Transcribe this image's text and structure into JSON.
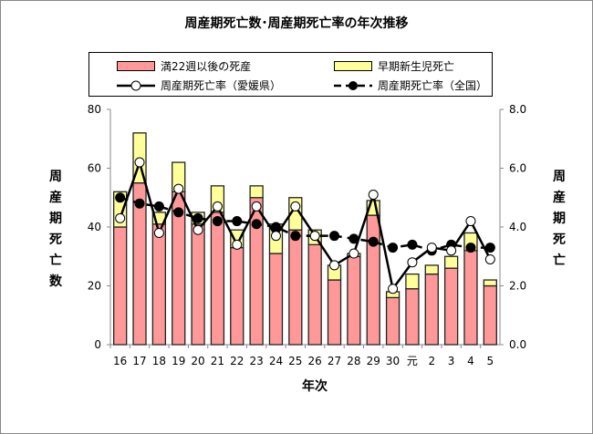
{
  "chart_data": {
    "type": "bar",
    "title": "周産期死亡数･周産期死亡率の年次推移",
    "xlabel": "年次",
    "ylabel_left": [
      "周",
      "産",
      "期",
      "死",
      "亡",
      "数"
    ],
    "ylabel_right": [
      "周",
      "産",
      "期",
      "死",
      "亡"
    ],
    "categories": [
      "16",
      "17",
      "18",
      "19",
      "20",
      "21",
      "22",
      "23",
      "24",
      "25",
      "26",
      "27",
      "28",
      "29",
      "30",
      "元",
      "2",
      "3",
      "4",
      "5"
    ],
    "ylim_left": [
      0,
      80
    ],
    "yticks_left": [
      "0",
      "20",
      "40",
      "60",
      "80"
    ],
    "ylim_right": [
      0,
      8
    ],
    "yticks_right": [
      "0.0",
      "2.0",
      "4.0",
      "6.0",
      "8.0"
    ],
    "legend_placement": "top",
    "series": [
      {
        "name": "満22週以後の死産",
        "kind": "bar-stacked",
        "color": "#ff9999",
        "values": [
          40,
          55,
          41,
          52,
          41,
          45,
          33,
          50,
          31,
          39,
          34,
          22,
          30,
          44,
          16,
          19,
          24,
          26,
          32,
          20
        ]
      },
      {
        "name": "早期新生児死亡",
        "kind": "bar-stacked",
        "color": "#ffff99",
        "values": [
          12,
          17,
          4,
          10,
          4,
          9,
          6,
          4,
          10,
          11,
          5,
          5,
          1,
          5,
          2,
          5,
          3,
          4,
          6,
          2
        ]
      },
      {
        "name": "周産期死亡率（愛媛県）",
        "kind": "line",
        "axis": "right",
        "marker": "white-circle",
        "line": "solid",
        "values": [
          4.3,
          6.2,
          3.8,
          5.3,
          3.9,
          4.7,
          3.4,
          4.7,
          3.7,
          4.7,
          3.7,
          2.7,
          3.1,
          5.1,
          1.9,
          2.8,
          3.3,
          3.2,
          4.2,
          2.9
        ]
      },
      {
        "name": "周産期死亡率（全国）",
        "kind": "line",
        "axis": "right",
        "marker": "black-circle",
        "line": "dashed",
        "values": [
          5.0,
          4.8,
          4.7,
          4.5,
          4.3,
          4.2,
          4.2,
          4.1,
          4.0,
          3.7,
          3.7,
          3.7,
          3.6,
          3.5,
          3.3,
          3.4,
          3.2,
          3.4,
          3.3,
          3.3
        ]
      }
    ]
  }
}
